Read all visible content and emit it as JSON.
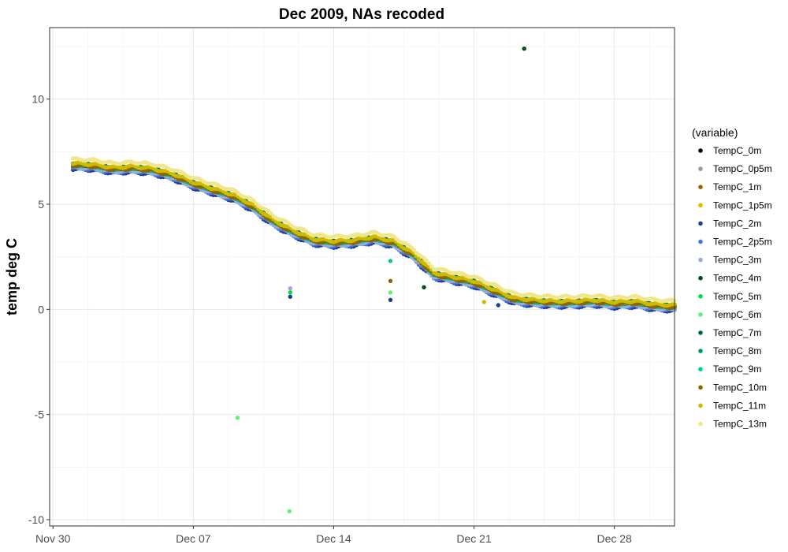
{
  "chart_data": {
    "type": "scatter",
    "title": "Dec 2009, NAs recoded",
    "xlabel": "",
    "ylabel": "temp deg C",
    "x_unit": "date",
    "xlim": [
      "2009-11-29T20:00",
      "2009-12-31T00:00"
    ],
    "ylim": [
      -10.3,
      13.4
    ],
    "x_ticks": [
      {
        "x": "2009-11-30",
        "label": "Nov 30"
      },
      {
        "x": "2009-12-07",
        "label": "Dec 07"
      },
      {
        "x": "2009-12-14",
        "label": "Dec 14"
      },
      {
        "x": "2009-12-21",
        "label": "Dec 21"
      },
      {
        "x": "2009-12-28",
        "label": "Dec 28"
      }
    ],
    "y_ticks": [
      {
        "y": 10,
        "label": "10"
      },
      {
        "y": 5,
        "label": "5"
      },
      {
        "y": 0,
        "label": "0"
      },
      {
        "y": -5,
        "label": "-5"
      },
      {
        "y": -10,
        "label": "-10"
      }
    ],
    "grid": true,
    "legend": {
      "title": "(variable)",
      "position": "right"
    },
    "trend": [
      {
        "x": "2009-12-01",
        "y": 6.8
      },
      {
        "x": "2009-12-02",
        "y": 6.75
      },
      {
        "x": "2009-12-03",
        "y": 6.6
      },
      {
        "x": "2009-12-04",
        "y": 6.65
      },
      {
        "x": "2009-12-05",
        "y": 6.55
      },
      {
        "x": "2009-12-06",
        "y": 6.3
      },
      {
        "x": "2009-12-07",
        "y": 5.9
      },
      {
        "x": "2009-12-08",
        "y": 5.6
      },
      {
        "x": "2009-12-09",
        "y": 5.3
      },
      {
        "x": "2009-12-10",
        "y": 4.8
      },
      {
        "x": "2009-12-11",
        "y": 4.1
      },
      {
        "x": "2009-12-12",
        "y": 3.6
      },
      {
        "x": "2009-12-13",
        "y": 3.2
      },
      {
        "x": "2009-12-14",
        "y": 3.1
      },
      {
        "x": "2009-12-15",
        "y": 3.15
      },
      {
        "x": "2009-12-16",
        "y": 3.3
      },
      {
        "x": "2009-12-17",
        "y": 3.1
      },
      {
        "x": "2009-12-18",
        "y": 2.5
      },
      {
        "x": "2009-12-19",
        "y": 1.6
      },
      {
        "x": "2009-12-20",
        "y": 1.4
      },
      {
        "x": "2009-12-21",
        "y": 1.2
      },
      {
        "x": "2009-12-22",
        "y": 0.8
      },
      {
        "x": "2009-12-23",
        "y": 0.4
      },
      {
        "x": "2009-12-24",
        "y": 0.3
      },
      {
        "x": "2009-12-25",
        "y": 0.25
      },
      {
        "x": "2009-12-26",
        "y": 0.25
      },
      {
        "x": "2009-12-27",
        "y": 0.3
      },
      {
        "x": "2009-12-28",
        "y": 0.2
      },
      {
        "x": "2009-12-29",
        "y": 0.25
      },
      {
        "x": "2009-12-30",
        "y": 0.1
      },
      {
        "x": "2009-12-31",
        "y": 0.05
      }
    ],
    "series": [
      {
        "name": "TempC_0m",
        "color": "#000000",
        "offset": 0.1
      },
      {
        "name": "TempC_0p5m",
        "color": "#999999",
        "offset": 0.08
      },
      {
        "name": "TempC_1m",
        "color": "#996600",
        "offset": 0.06
      },
      {
        "name": "TempC_1p5m",
        "color": "#e6b800",
        "offset": 0.05
      },
      {
        "name": "TempC_2m",
        "color": "#1f3d99",
        "offset": -0.12
      },
      {
        "name": "TempC_2p5m",
        "color": "#4477dd",
        "offset": -0.08
      },
      {
        "name": "TempC_3m",
        "color": "#99aadd",
        "offset": -0.05
      },
      {
        "name": "TempC_4m",
        "color": "#004d1a",
        "offset": 0.12
      },
      {
        "name": "TempC_5m",
        "color": "#00dd44",
        "offset": 0.1
      },
      {
        "name": "TempC_6m",
        "color": "#66ee77",
        "offset": 0.08
      },
      {
        "name": "TempC_7m",
        "color": "#006633",
        "offset": 0.1
      },
      {
        "name": "TempC_8m",
        "color": "#009966",
        "offset": 0.08
      },
      {
        "name": "TempC_9m",
        "color": "#00cc99",
        "offset": 0.06
      },
      {
        "name": "TempC_10m",
        "color": "#886600",
        "offset": 0.05
      },
      {
        "name": "TempC_11m",
        "color": "#ccbb00",
        "offset": 0.15
      },
      {
        "name": "TempC_13m",
        "color": "#f0e68c",
        "offset": 0.35
      }
    ],
    "outliers": [
      {
        "series": "TempC_4m",
        "x": "2009-12-23T12:00",
        "y": 12.4
      },
      {
        "series": "TempC_6m",
        "x": "2009-12-09T05:00",
        "y": -5.15
      },
      {
        "series": "TempC_6m",
        "x": "2009-12-11T19:00",
        "y": -9.6
      },
      {
        "series": "TempC_3m",
        "x": "2009-12-11T20:00",
        "y": 1.0
      },
      {
        "series": "TempC_5m",
        "x": "2009-12-11T20:00",
        "y": 0.8
      },
      {
        "series": "TempC_2m",
        "x": "2009-12-11T20:00",
        "y": 0.6
      },
      {
        "series": "TempC_10m",
        "x": "2009-12-16T20:00",
        "y": 1.35
      },
      {
        "series": "TempC_9m",
        "x": "2009-12-16T20:00",
        "y": 2.3
      },
      {
        "series": "TempC_6m",
        "x": "2009-12-16T20:00",
        "y": 0.8
      },
      {
        "series": "TempC_2m",
        "x": "2009-12-16T20:00",
        "y": 0.45
      },
      {
        "series": "TempC_4m",
        "x": "2009-12-18T12:00",
        "y": 1.05
      },
      {
        "series": "TempC_11m",
        "x": "2009-12-21T12:00",
        "y": 0.35
      },
      {
        "series": "TempC_2m",
        "x": "2009-12-22T05:00",
        "y": 0.2
      }
    ]
  }
}
